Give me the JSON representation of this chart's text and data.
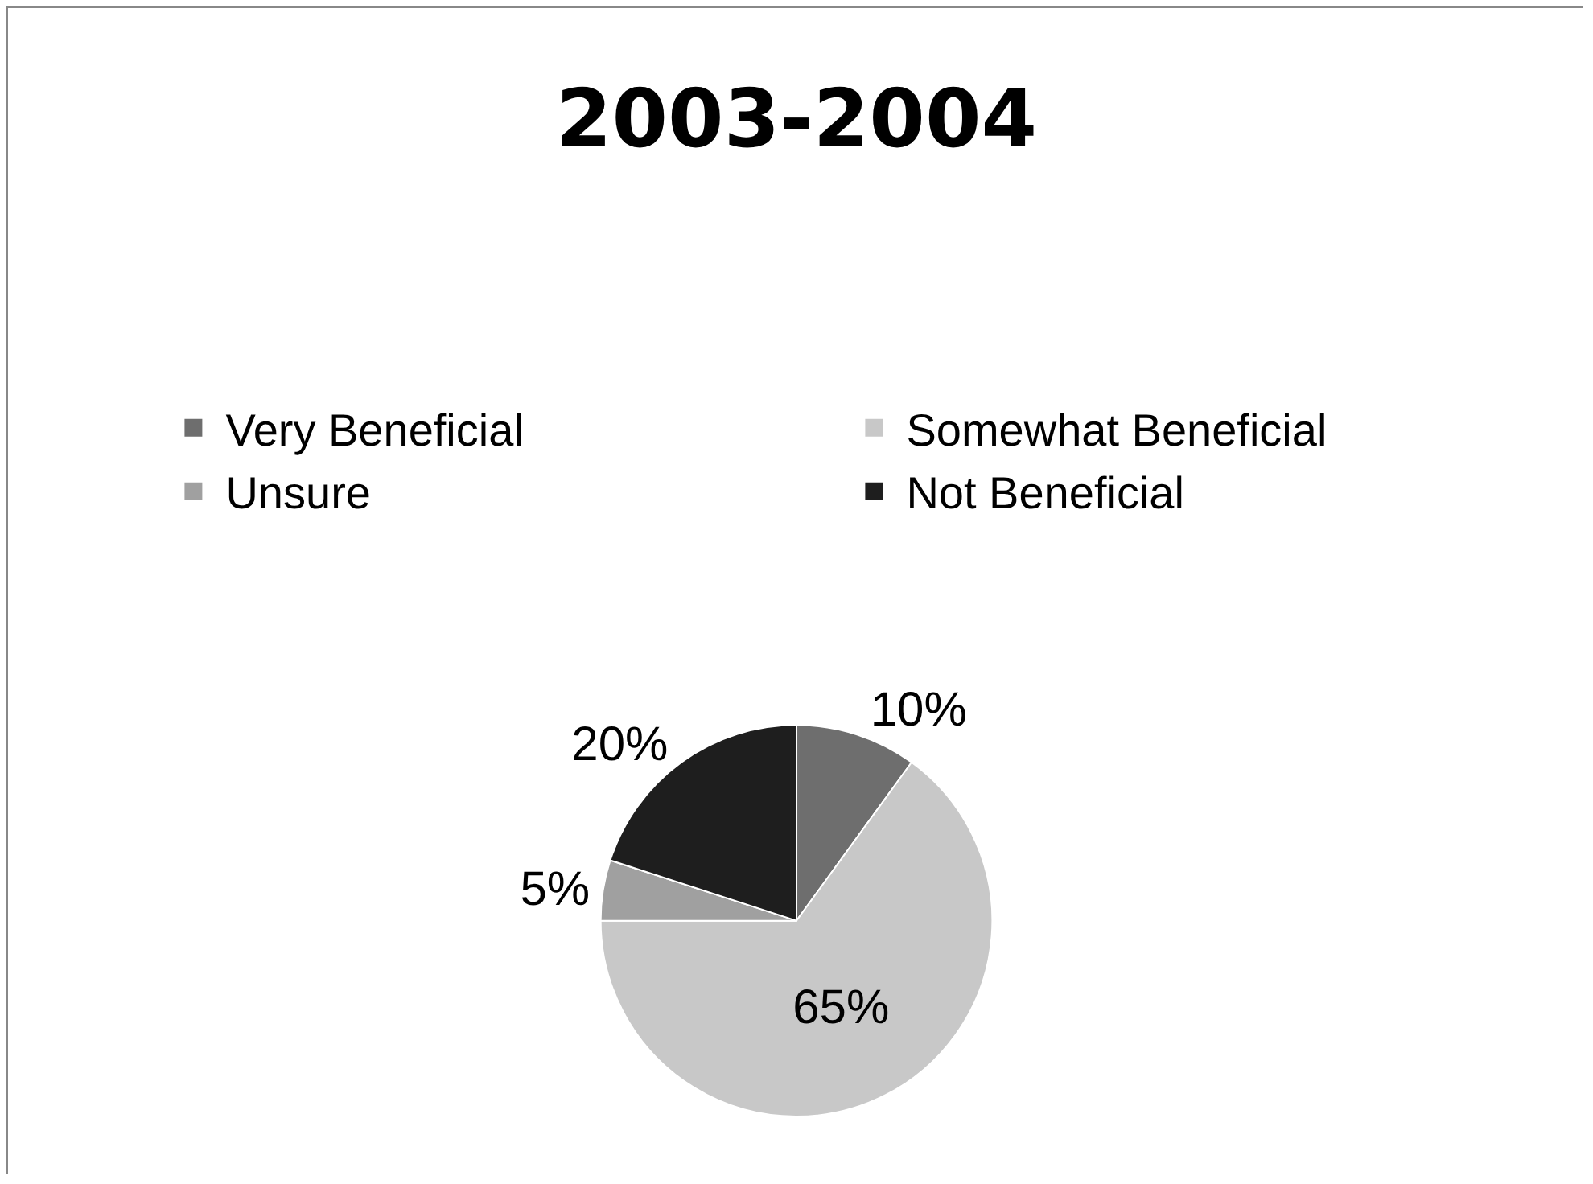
{
  "chart_data": {
    "type": "pie",
    "title": "2003-2004",
    "categories": [
      "Very Beneficial",
      "Somewhat Beneficial",
      "Unsure",
      "Not Beneficial"
    ],
    "values": [
      10,
      65,
      5,
      20
    ],
    "value_labels": [
      "10%",
      "65%",
      "5%",
      "20%"
    ],
    "colors": [
      "#6e6e6e",
      "#c8c8c8",
      "#a0a0a0",
      "#1e1e1e"
    ],
    "legend": "top"
  }
}
